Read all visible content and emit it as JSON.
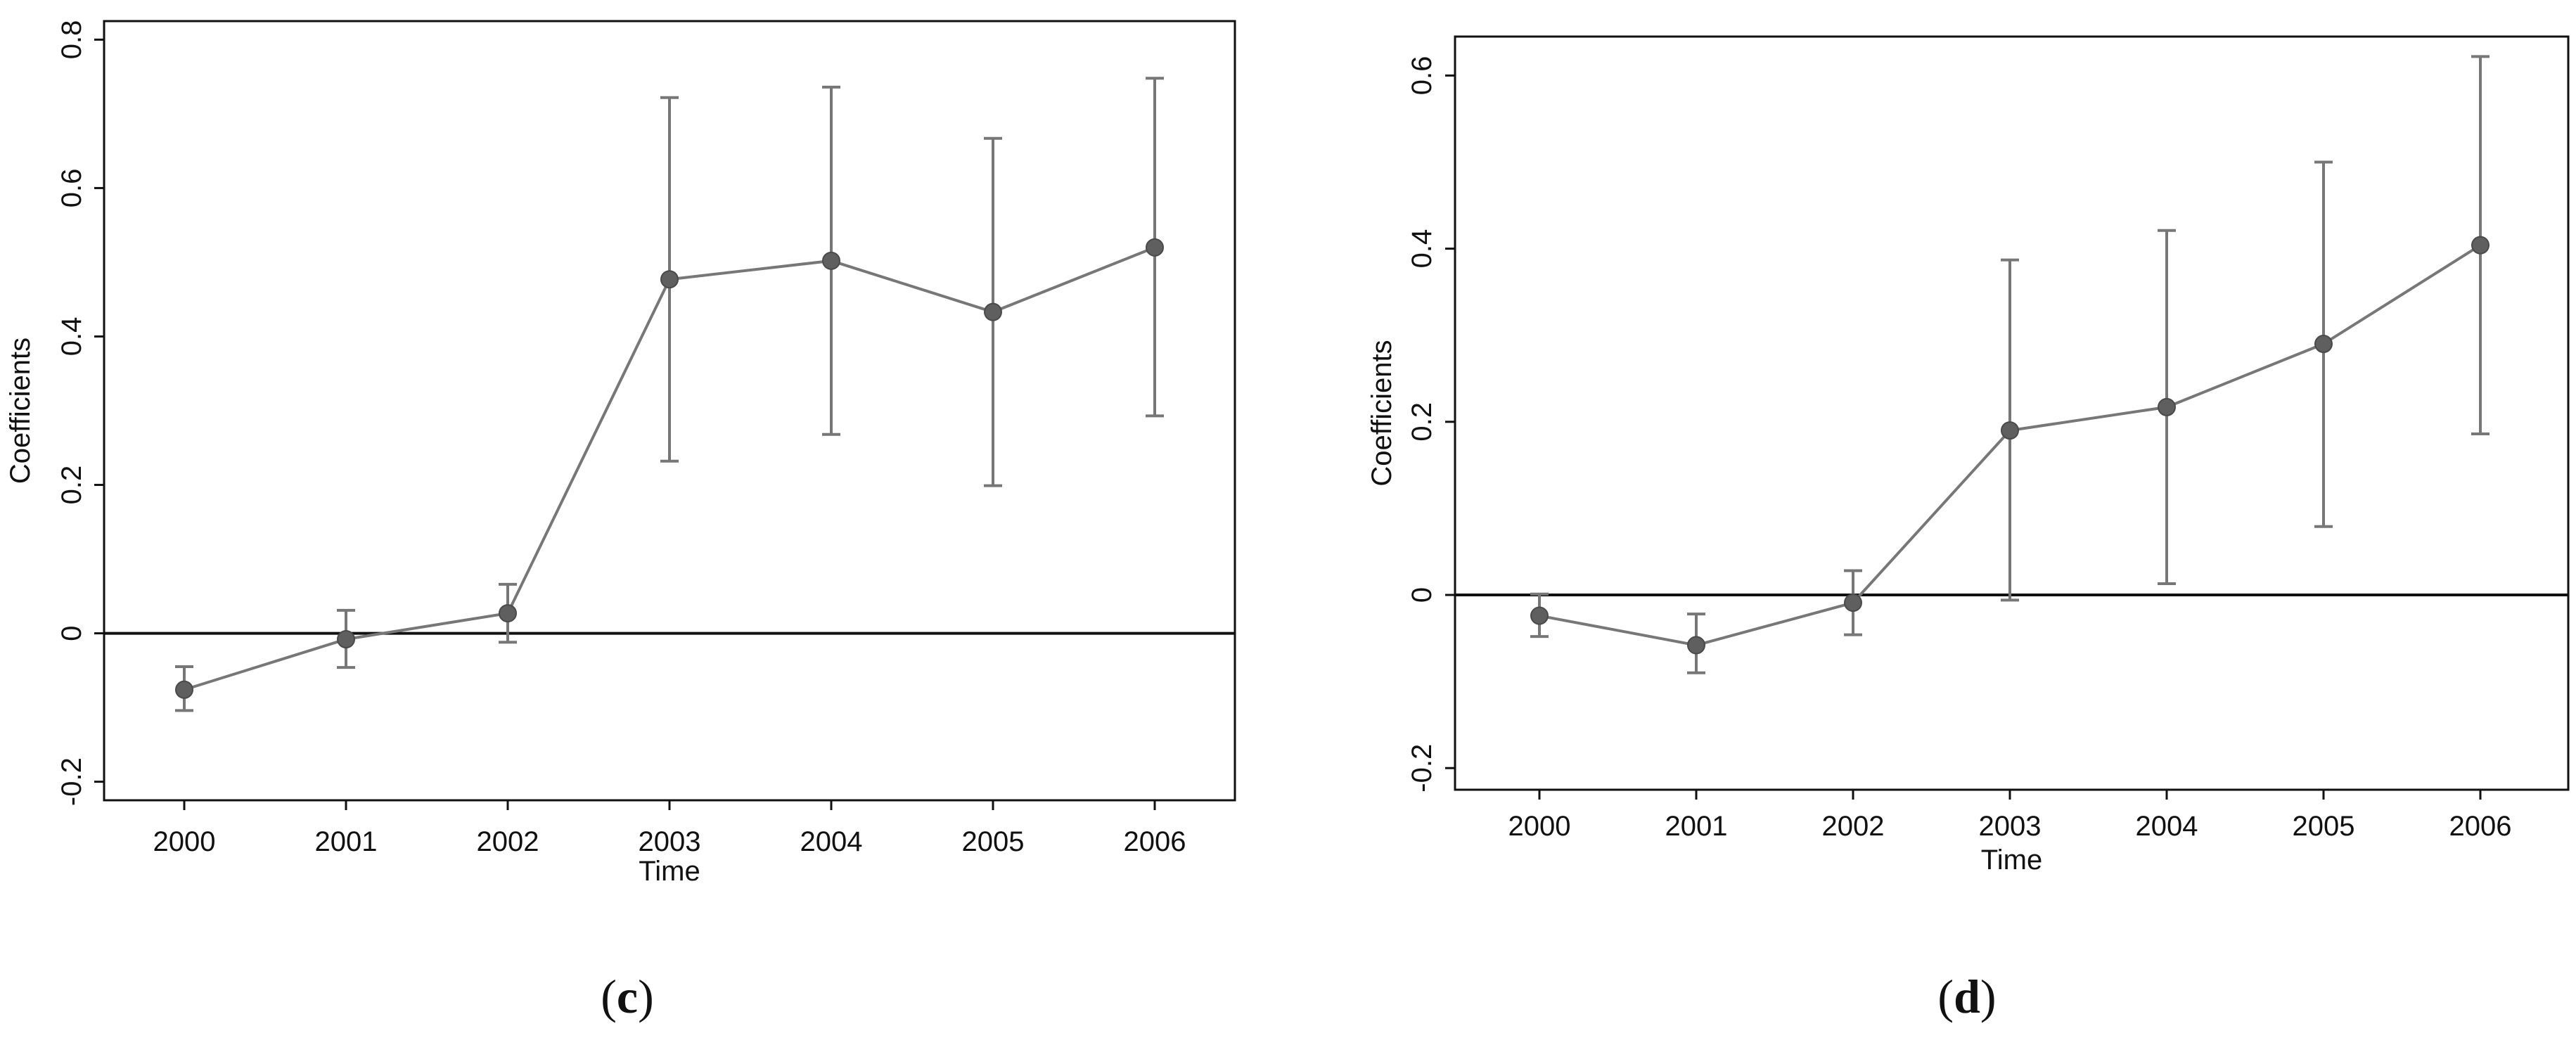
{
  "chart_data": [
    {
      "type": "line",
      "panel_label": "c",
      "x": [
        "2000",
        "2001",
        "2002",
        "2003",
        "2004",
        "2005",
        "2006"
      ],
      "series": [
        {
          "values": [
            -0.076,
            -0.008,
            0.027,
            0.477,
            0.502,
            0.433,
            0.52
          ],
          "ci_low": [
            -0.104,
            -0.046,
            -0.012,
            0.232,
            0.268,
            0.199,
            0.293
          ],
          "ci_high": [
            -0.045,
            0.031,
            0.066,
            0.722,
            0.736,
            0.667,
            0.748
          ]
        }
      ],
      "xlabel": "Time",
      "ylabel": "Coefficients",
      "yticks": [
        -0.2,
        0,
        0.2,
        0.4,
        0.6,
        0.8
      ],
      "ytick_labels": [
        "-0.2",
        "0",
        "0.2",
        "0.4",
        "0.6",
        "0.8"
      ],
      "ylim": [
        -0.225,
        0.825
      ],
      "reference_line_y": 0,
      "grid": false,
      "colors": {
        "series": "#777777",
        "marker": "#5f5f5f",
        "axis": "#111111"
      }
    },
    {
      "type": "line",
      "panel_label": "d",
      "x": [
        "2000",
        "2001",
        "2002",
        "2003",
        "2004",
        "2005",
        "2006"
      ],
      "series": [
        {
          "values": [
            -0.024,
            -0.058,
            -0.009,
            0.19,
            0.217,
            0.29,
            0.404
          ],
          "ci_low": [
            -0.048,
            -0.09,
            -0.046,
            -0.006,
            0.013,
            0.079,
            0.186
          ],
          "ci_high": [
            0.001,
            -0.022,
            0.028,
            0.387,
            0.421,
            0.5,
            0.622
          ]
        }
      ],
      "xlabel": "Time",
      "ylabel": "Coefficients",
      "yticks": [
        -0.2,
        0,
        0.2,
        0.4,
        0.6
      ],
      "ytick_labels": [
        "-0.2",
        "0",
        "0.2",
        "0.4",
        "0.6"
      ],
      "ylim": [
        -0.225,
        0.645
      ],
      "reference_line_y": 0,
      "grid": false,
      "colors": {
        "series": "#777777",
        "marker": "#5f5f5f",
        "axis": "#111111"
      }
    }
  ]
}
